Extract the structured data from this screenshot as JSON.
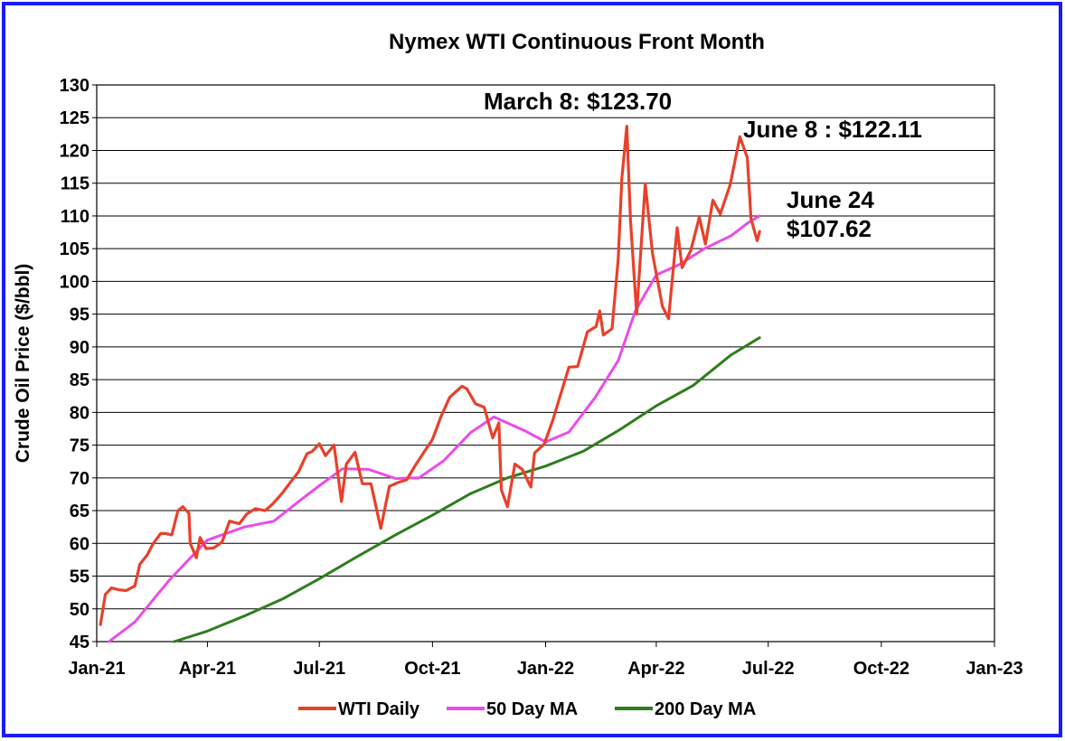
{
  "chart_data": {
    "type": "line",
    "title": "Nymex WTI Continuous Front Month",
    "ylabel": "Crude Oil Price ($/bbl)",
    "xlabel": "",
    "ylim": [
      45,
      130
    ],
    "y_ticks": [
      45,
      50,
      55,
      60,
      65,
      70,
      75,
      80,
      85,
      90,
      95,
      100,
      105,
      110,
      115,
      120,
      125,
      130
    ],
    "x_range": [
      "2021-01-01",
      "2023-01-01"
    ],
    "x_ticks": [
      {
        "date": "2021-01-01",
        "label": "Jan-21"
      },
      {
        "date": "2021-04-01",
        "label": "Apr-21"
      },
      {
        "date": "2021-07-01",
        "label": "Jul-21"
      },
      {
        "date": "2021-10-01",
        "label": "Oct-21"
      },
      {
        "date": "2022-01-01",
        "label": "Jan-22"
      },
      {
        "date": "2022-04-01",
        "label": "Apr-22"
      },
      {
        "date": "2022-07-01",
        "label": "Jul-22"
      },
      {
        "date": "2022-10-01",
        "label": "Oct-22"
      },
      {
        "date": "2023-01-01",
        "label": "Jan-23"
      }
    ],
    "grid": "horizontal",
    "legend_position": "bottom",
    "series": [
      {
        "name": "WTI Daily",
        "color": "#e8402a",
        "points": [
          [
            "2021-01-04",
            47.6
          ],
          [
            "2021-01-08",
            52.2
          ],
          [
            "2021-01-13",
            53.2
          ],
          [
            "2021-01-19",
            52.9
          ],
          [
            "2021-01-25",
            52.8
          ],
          [
            "2021-02-01",
            53.5
          ],
          [
            "2021-02-05",
            56.8
          ],
          [
            "2021-02-11",
            58.2
          ],
          [
            "2021-02-16",
            60.0
          ],
          [
            "2021-02-22",
            61.5
          ],
          [
            "2021-02-26",
            61.5
          ],
          [
            "2021-03-03",
            61.3
          ],
          [
            "2021-03-08",
            65.0
          ],
          [
            "2021-03-12",
            65.6
          ],
          [
            "2021-03-17",
            64.6
          ],
          [
            "2021-03-18",
            60.0
          ],
          [
            "2021-03-23",
            57.8
          ],
          [
            "2021-03-26",
            60.9
          ],
          [
            "2021-03-31",
            59.2
          ],
          [
            "2021-04-06",
            59.3
          ],
          [
            "2021-04-13",
            60.2
          ],
          [
            "2021-04-19",
            63.4
          ],
          [
            "2021-04-27",
            63.0
          ],
          [
            "2021-05-03",
            64.5
          ],
          [
            "2021-05-10",
            65.3
          ],
          [
            "2021-05-18",
            65.0
          ],
          [
            "2021-05-24",
            66.0
          ],
          [
            "2021-06-01",
            67.7
          ],
          [
            "2021-06-07",
            69.2
          ],
          [
            "2021-06-14",
            70.9
          ],
          [
            "2021-06-21",
            73.7
          ],
          [
            "2021-06-25",
            74.0
          ],
          [
            "2021-07-01",
            75.2
          ],
          [
            "2021-07-06",
            73.4
          ],
          [
            "2021-07-13",
            75.0
          ],
          [
            "2021-07-19",
            66.4
          ],
          [
            "2021-07-23",
            72.1
          ],
          [
            "2021-07-30",
            73.9
          ],
          [
            "2021-08-05",
            69.1
          ],
          [
            "2021-08-12",
            69.1
          ],
          [
            "2021-08-20",
            62.3
          ],
          [
            "2021-08-27",
            68.7
          ],
          [
            "2021-09-03",
            69.3
          ],
          [
            "2021-09-10",
            69.7
          ],
          [
            "2021-09-17",
            71.9
          ],
          [
            "2021-09-24",
            73.9
          ],
          [
            "2021-10-01",
            75.9
          ],
          [
            "2021-10-08",
            79.4
          ],
          [
            "2021-10-15",
            82.3
          ],
          [
            "2021-10-25",
            84.0
          ],
          [
            "2021-10-29",
            83.6
          ],
          [
            "2021-11-05",
            81.3
          ],
          [
            "2021-11-12",
            80.8
          ],
          [
            "2021-11-19",
            76.1
          ],
          [
            "2021-11-24",
            78.4
          ],
          [
            "2021-11-26",
            68.2
          ],
          [
            "2021-12-01",
            65.6
          ],
          [
            "2021-12-07",
            72.1
          ],
          [
            "2021-12-13",
            71.3
          ],
          [
            "2021-12-20",
            68.6
          ],
          [
            "2021-12-23",
            73.8
          ],
          [
            "2021-12-31",
            75.2
          ],
          [
            "2022-01-07",
            78.9
          ],
          [
            "2022-01-13",
            82.6
          ],
          [
            "2022-01-20",
            86.9
          ],
          [
            "2022-01-27",
            87.0
          ],
          [
            "2022-02-04",
            92.3
          ],
          [
            "2022-02-11",
            93.1
          ],
          [
            "2022-02-14",
            95.5
          ],
          [
            "2022-02-17",
            91.8
          ],
          [
            "2022-02-24",
            92.8
          ],
          [
            "2022-03-01",
            103.4
          ],
          [
            "2022-03-04",
            115.7
          ],
          [
            "2022-03-08",
            123.7
          ],
          [
            "2022-03-11",
            109.3
          ],
          [
            "2022-03-16",
            95.0
          ],
          [
            "2022-03-23",
            114.9
          ],
          [
            "2022-03-29",
            104.2
          ],
          [
            "2022-04-06",
            96.2
          ],
          [
            "2022-04-11",
            94.3
          ],
          [
            "2022-04-18",
            108.2
          ],
          [
            "2022-04-22",
            102.1
          ],
          [
            "2022-04-29",
            104.7
          ],
          [
            "2022-05-06",
            109.8
          ],
          [
            "2022-05-11",
            105.7
          ],
          [
            "2022-05-17",
            112.4
          ],
          [
            "2022-05-23",
            110.3
          ],
          [
            "2022-05-31",
            114.7
          ],
          [
            "2022-06-08",
            122.1
          ],
          [
            "2022-06-14",
            118.9
          ],
          [
            "2022-06-17",
            109.6
          ],
          [
            "2022-06-22",
            106.2
          ],
          [
            "2022-06-24",
            107.6
          ]
        ]
      },
      {
        "name": "50 Day MA",
        "color": "#ea4ce8",
        "points": [
          [
            "2021-01-11",
            45.0
          ],
          [
            "2021-02-01",
            48.0
          ],
          [
            "2021-03-01",
            54.4
          ],
          [
            "2021-04-01",
            60.5
          ],
          [
            "2021-05-01",
            62.5
          ],
          [
            "2021-05-25",
            63.4
          ],
          [
            "2021-06-15",
            66.5
          ],
          [
            "2021-07-01",
            68.8
          ],
          [
            "2021-07-20",
            71.4
          ],
          [
            "2021-08-10",
            71.3
          ],
          [
            "2021-09-01",
            69.9
          ],
          [
            "2021-09-20",
            70.0
          ],
          [
            "2021-10-10",
            72.6
          ],
          [
            "2021-11-01",
            76.9
          ],
          [
            "2021-11-20",
            79.3
          ],
          [
            "2021-12-15",
            77.2
          ],
          [
            "2022-01-01",
            75.5
          ],
          [
            "2022-01-20",
            77.0
          ],
          [
            "2022-02-10",
            82.2
          ],
          [
            "2022-03-01",
            87.9
          ],
          [
            "2022-03-15",
            95.5
          ],
          [
            "2022-04-01",
            101.0
          ],
          [
            "2022-04-20",
            102.6
          ],
          [
            "2022-05-10",
            105.0
          ],
          [
            "2022-06-01",
            107.0
          ],
          [
            "2022-06-15",
            109.0
          ],
          [
            "2022-06-24",
            110.0
          ]
        ]
      },
      {
        "name": "200 Day MA",
        "color": "#2e7d1e",
        "points": [
          [
            "2021-03-05",
            45.0
          ],
          [
            "2021-04-01",
            46.6
          ],
          [
            "2021-05-01",
            48.9
          ],
          [
            "2021-06-01",
            51.5
          ],
          [
            "2021-07-01",
            54.6
          ],
          [
            "2021-08-01",
            58.0
          ],
          [
            "2021-09-01",
            61.3
          ],
          [
            "2021-10-01",
            64.3
          ],
          [
            "2021-11-01",
            67.6
          ],
          [
            "2021-12-01",
            70.0
          ],
          [
            "2022-01-01",
            71.8
          ],
          [
            "2022-02-01",
            74.1
          ],
          [
            "2022-03-01",
            77.2
          ],
          [
            "2022-04-01",
            81.0
          ],
          [
            "2022-05-01",
            84.1
          ],
          [
            "2022-06-01",
            88.8
          ],
          [
            "2022-06-24",
            91.4
          ]
        ]
      }
    ],
    "annotations": [
      {
        "id": "march8",
        "text": "March 8: $123.70"
      },
      {
        "id": "june8",
        "text": "June 8 : $122.11"
      },
      {
        "id": "june24_line1",
        "text": "June 24"
      },
      {
        "id": "june24_line2",
        "text": "$107.62"
      }
    ]
  }
}
